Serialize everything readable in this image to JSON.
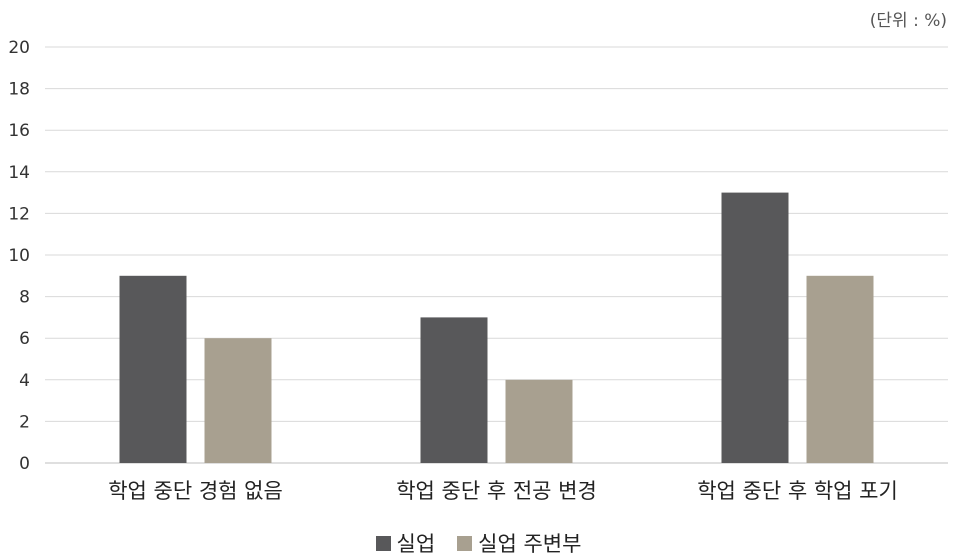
{
  "unit_note": "(단위 : %)",
  "chart_data": {
    "type": "bar",
    "categories": [
      "학업 중단 경험 없음",
      "학업 중단 후 전공 변경",
      "학업 중단 후 학업 포기"
    ],
    "series": [
      {
        "name": "실업",
        "values": [
          9,
          7,
          13
        ],
        "color": "#58585a"
      },
      {
        "name": "실업 주변부",
        "values": [
          6,
          4,
          9
        ],
        "color": "#a8a090"
      }
    ],
    "ylim": [
      0,
      20
    ],
    "yticks": [
      0,
      2,
      4,
      6,
      8,
      10,
      12,
      14,
      16,
      18,
      20
    ],
    "grid": true,
    "legend_position": "bottom-center",
    "xlabel": "",
    "ylabel": ""
  }
}
